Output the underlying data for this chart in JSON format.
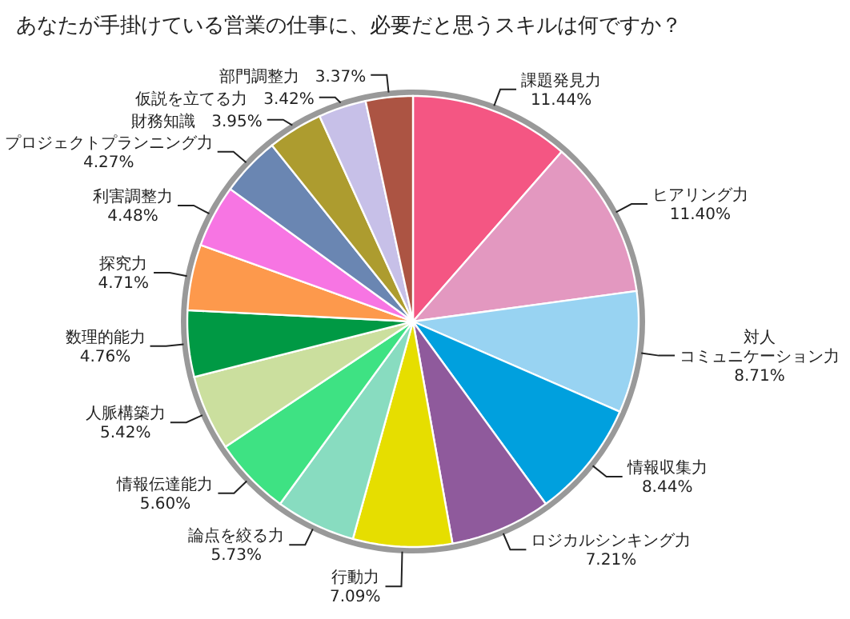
{
  "chart_data": {
    "type": "pie",
    "title": "あなたが手掛けている営業の仕事に、必要だと思うスキルは何ですか？",
    "categories": [
      "課題発見力",
      "ヒアリング力",
      "対人コミュニケーション力",
      "情報収集力",
      "ロジカルシンキング力",
      "行動力",
      "論点を絞る力",
      "情報伝達能力",
      "人脈構築力",
      "数理的能力",
      "探究力",
      "利害調整力",
      "プロジェクトプランニング力",
      "財務知識",
      "仮説を立てる力",
      "部門調整力"
    ],
    "values": [
      11.44,
      11.4,
      8.71,
      8.44,
      7.21,
      7.09,
      5.73,
      5.6,
      5.42,
      4.76,
      4.71,
      4.48,
      4.27,
      3.95,
      3.42,
      3.37
    ],
    "value_labels": [
      "11.44%",
      "11.40%",
      "8.71%",
      "8.44%",
      "7.21%",
      "7.09%",
      "5.73%",
      "5.60%",
      "5.42%",
      "4.76%",
      "4.71%",
      "4.48%",
      "4.27%",
      "3.95%",
      "3.42%",
      "3.37%"
    ],
    "colors": [
      "#f45683",
      "#e398c0",
      "#98d3f2",
      "#00a0de",
      "#8f5a9c",
      "#e6de00",
      "#88dcc0",
      "#3ee283",
      "#cbdf9e",
      "#009944",
      "#fd994c",
      "#f775e3",
      "#6a86b2",
      "#ad9c2f",
      "#c7c0e8",
      "#ac5443"
    ]
  }
}
